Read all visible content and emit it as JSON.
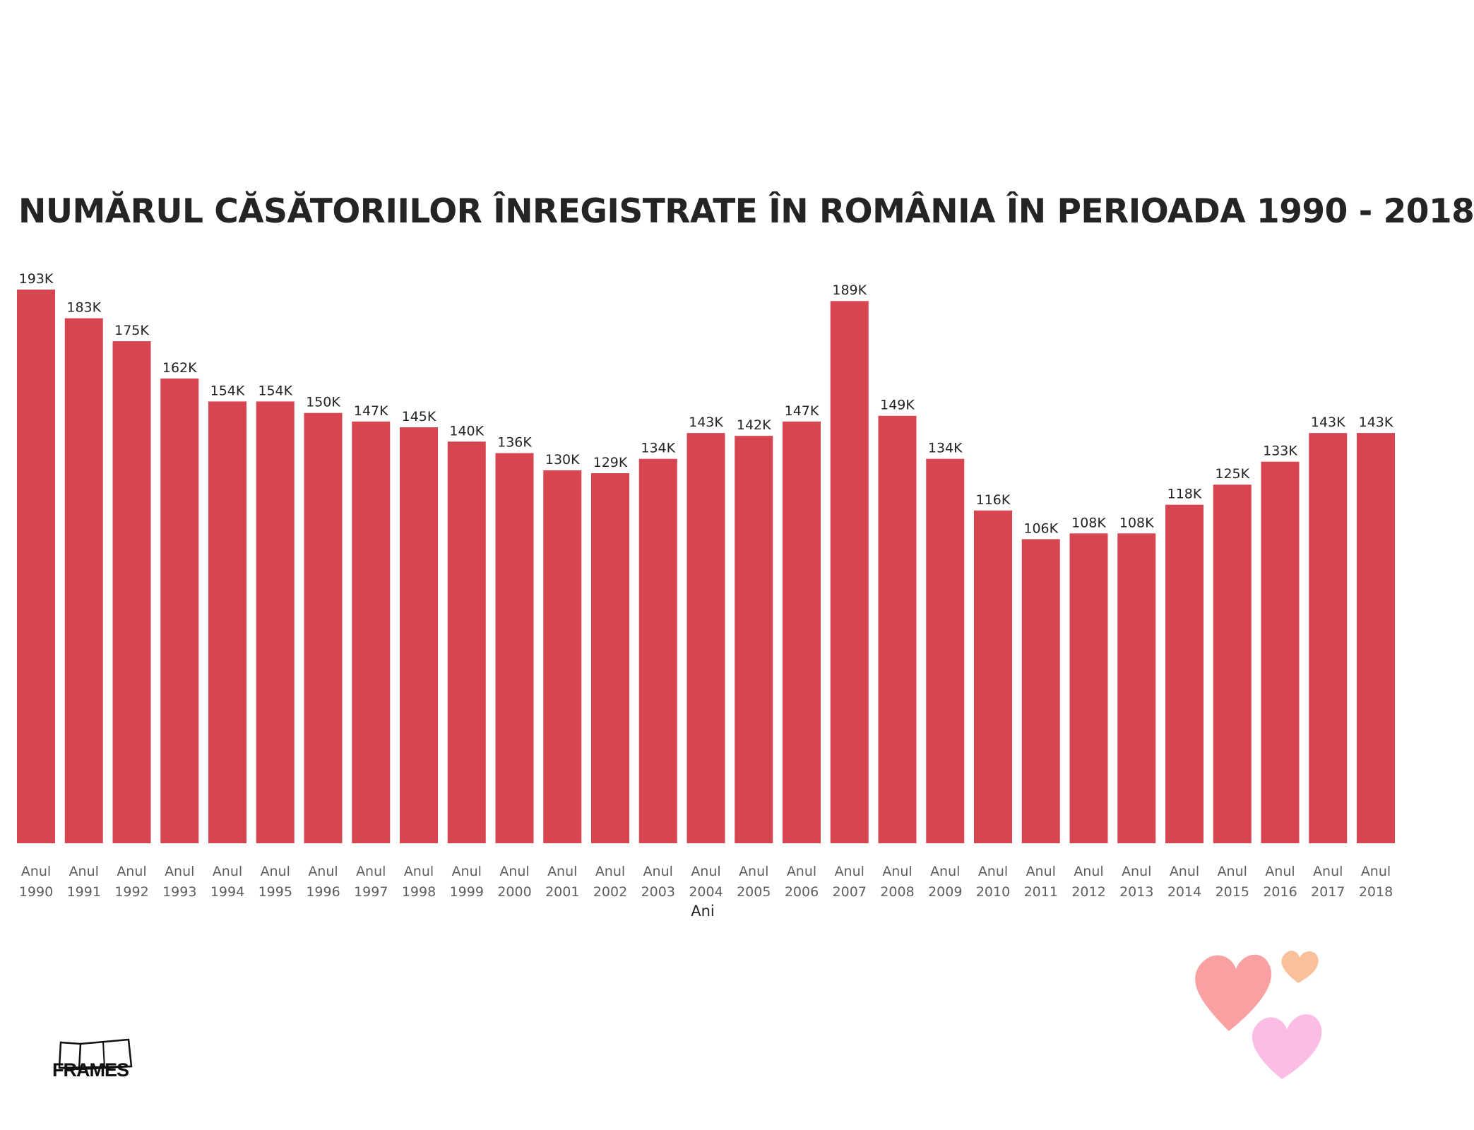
{
  "chart_data": {
    "type": "bar",
    "title": "NUMĂRUL CĂSĂTORIILOR ÎNREGISTRATE ÎN ROMÂNIA ÎN PERIOADA 1990 - 2018",
    "xlabel": "Ani",
    "ylabel": "",
    "categories": [
      [
        "Anul",
        "1990"
      ],
      [
        "Anul",
        "1991"
      ],
      [
        "Anul",
        "1992"
      ],
      [
        "Anul",
        "1993"
      ],
      [
        "Anul",
        "1994"
      ],
      [
        "Anul",
        "1995"
      ],
      [
        "Anul",
        "1996"
      ],
      [
        "Anul",
        "1997"
      ],
      [
        "Anul",
        "1998"
      ],
      [
        "Anul",
        "1999"
      ],
      [
        "Anul",
        "2000"
      ],
      [
        "Anul",
        "2001"
      ],
      [
        "Anul",
        "2002"
      ],
      [
        "Anul",
        "2003"
      ],
      [
        "Anul",
        "2004"
      ],
      [
        "Anul",
        "2005"
      ],
      [
        "Anul",
        "2006"
      ],
      [
        "Anul",
        "2007"
      ],
      [
        "Anul",
        "2008"
      ],
      [
        "Anul",
        "2009"
      ],
      [
        "Anul",
        "2010"
      ],
      [
        "Anul",
        "2011"
      ],
      [
        "Anul",
        "2012"
      ],
      [
        "Anul",
        "2013"
      ],
      [
        "Anul",
        "2014"
      ],
      [
        "Anul",
        "2015"
      ],
      [
        "Anul",
        "2016"
      ],
      [
        "Anul",
        "2017"
      ],
      [
        "Anul",
        "2018"
      ]
    ],
    "values": [
      193000,
      183000,
      175000,
      162000,
      154000,
      154000,
      150000,
      147000,
      145000,
      140000,
      136000,
      130000,
      129000,
      134000,
      143000,
      142000,
      147000,
      189000,
      149000,
      134000,
      116000,
      106000,
      108000,
      108000,
      118000,
      125000,
      133000,
      143000,
      143000
    ],
    "data_labels": [
      "193K",
      "183K",
      "175K",
      "162K",
      "154K",
      "154K",
      "150K",
      "147K",
      "145K",
      "140K",
      "136K",
      "130K",
      "129K",
      "134K",
      "143K",
      "142K",
      "147K",
      "189K",
      "149K",
      "134K",
      "116K",
      "106K",
      "108K",
      "108K",
      "118K",
      "125K",
      "133K",
      "143K",
      "143K"
    ],
    "ylim": [
      0,
      193000
    ],
    "grid": false,
    "bar_color": "#d64550"
  },
  "branding": {
    "logo_text": "FRAMES",
    "decoration": [
      "heart-icon",
      "heart-icon",
      "heart-icon"
    ],
    "heart_colors": [
      "#f9a0a3",
      "#f9c09b",
      "#fbbde3"
    ]
  }
}
